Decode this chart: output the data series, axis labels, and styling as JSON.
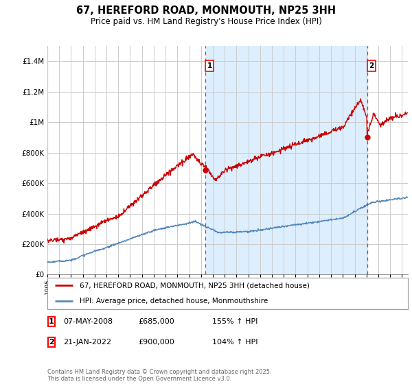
{
  "title": "67, HEREFORD ROAD, MONMOUTH, NP25 3HH",
  "subtitle": "Price paid vs. HM Land Registry's House Price Index (HPI)",
  "ylim": [
    0,
    1500000
  ],
  "yticks": [
    0,
    200000,
    400000,
    600000,
    800000,
    1000000,
    1200000,
    1400000
  ],
  "legend_house": "67, HEREFORD ROAD, MONMOUTH, NP25 3HH (detached house)",
  "legend_hpi": "HPI: Average price, detached house, Monmouthshire",
  "house_color": "#cc0000",
  "hpi_color": "#5588bb",
  "shade_color": "#ddeeff",
  "vline_color": "#dd3333",
  "sale1_date": 2008.35,
  "sale1_price": 685000,
  "sale1_pct": "155% ↑ HPI",
  "sale1_display": "07-MAY-2008",
  "sale2_date": 2022.05,
  "sale2_price": 900000,
  "sale2_pct": "104% ↑ HPI",
  "sale2_display": "21-JAN-2022",
  "footer": "Contains HM Land Registry data © Crown copyright and database right 2025.\nThis data is licensed under the Open Government Licence v3.0.",
  "background_color": "#ffffff",
  "grid_color": "#cccccc"
}
